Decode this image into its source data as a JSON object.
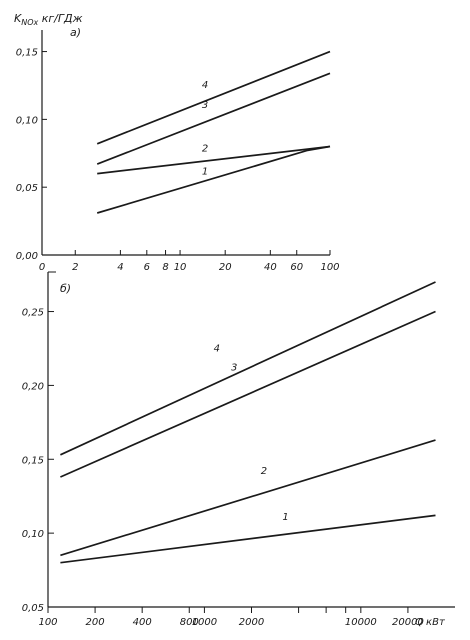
{
  "colors": {
    "ink": "#1a1a1a",
    "background": "#ffffff"
  },
  "chart_data": [
    {
      "type": "line",
      "panel_label": "а)",
      "ylabel": "K_NOx кг/ГДж",
      "x_scale": "log",
      "xlim": [
        1.2,
        100
      ],
      "ylim": [
        0.0,
        0.16
      ],
      "x_tick_labels": [
        "0",
        "2",
        "4",
        "6",
        "8",
        "10",
        "20",
        "40",
        "60",
        "100"
      ],
      "y_ticks": [
        0.0,
        0.05,
        0.1,
        0.15
      ],
      "y_tick_labels": [
        "0,00",
        "0,05",
        "0,10",
        "0,15"
      ],
      "grid": false,
      "series": [
        {
          "name": "4",
          "x": [
            2.8,
            100
          ],
          "y": [
            0.082,
            0.15
          ]
        },
        {
          "name": "3",
          "x": [
            2.8,
            100
          ],
          "y": [
            0.067,
            0.134
          ]
        },
        {
          "name": "2",
          "x": [
            2.8,
            100
          ],
          "y": [
            0.06,
            0.08
          ]
        },
        {
          "name": "1",
          "x": [
            2.8,
            70,
            100
          ],
          "y": [
            0.031,
            0.077,
            0.08
          ]
        }
      ]
    },
    {
      "type": "line",
      "panel_label": "б)",
      "xlabel": "Q кВт",
      "x_scale": "log",
      "xlim": [
        100,
        40000
      ],
      "ylim": [
        0.05,
        0.27
      ],
      "x_tick_labels": [
        "100",
        "200",
        "400",
        "800",
        "1000",
        "2000",
        "10000",
        "20000"
      ],
      "y_ticks": [
        0.05,
        0.1,
        0.15,
        0.2,
        0.25
      ],
      "y_tick_labels": [
        "0,05",
        "0,10",
        "0,15",
        "0,20",
        "0,25"
      ],
      "grid": false,
      "series": [
        {
          "name": "4",
          "x": [
            120,
            30000
          ],
          "y": [
            0.153,
            0.27
          ]
        },
        {
          "name": "3",
          "x": [
            120,
            30000
          ],
          "y": [
            0.138,
            0.25
          ]
        },
        {
          "name": "2",
          "x": [
            120,
            30000
          ],
          "y": [
            0.085,
            0.163
          ]
        },
        {
          "name": "1",
          "x": [
            120,
            30000
          ],
          "y": [
            0.08,
            0.112
          ]
        }
      ]
    }
  ]
}
